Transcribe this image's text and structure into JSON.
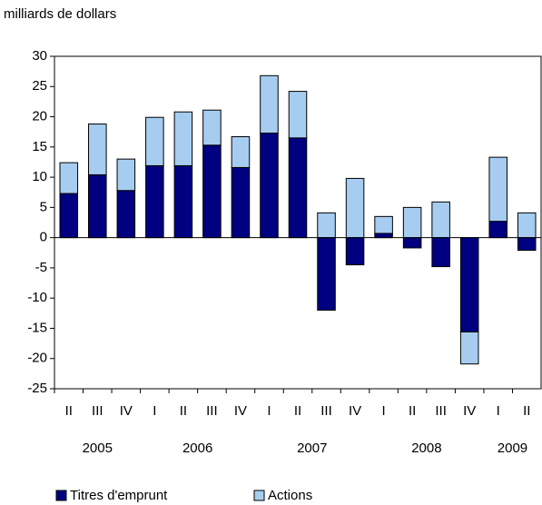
{
  "chart_data": {
    "type": "bar",
    "stacked": true,
    "y_label": "milliards de dollars",
    "groups": [
      {
        "year": "2005",
        "quarters": [
          "II",
          "III",
          "IV"
        ]
      },
      {
        "year": "2006",
        "quarters": [
          "I",
          "II",
          "III",
          "IV"
        ]
      },
      {
        "year": "2007",
        "quarters": [
          "I",
          "II",
          "III",
          "IV"
        ]
      },
      {
        "year": "2008",
        "quarters": [
          "I",
          "II",
          "III",
          "IV"
        ]
      },
      {
        "year": "2009",
        "quarters": [
          "I",
          "II"
        ]
      }
    ],
    "series": [
      {
        "name": "Titres d'emprunt",
        "color": "#000080",
        "values": [
          7.3,
          10.4,
          7.8,
          11.9,
          11.9,
          15.3,
          11.6,
          17.3,
          16.5,
          -12,
          -4.5,
          0.7,
          -1.7,
          -4.8,
          -15.6,
          2.7,
          -2.1
        ]
      },
      {
        "name": "Actions",
        "color": "#a6cdf0",
        "values": [
          5.1,
          8.4,
          5.2,
          8.0,
          8.9,
          5.8,
          5.1,
          9.5,
          7.7,
          4.1,
          9.8,
          2.8,
          5.0,
          5.9,
          -5.3,
          10.6,
          4.1
        ]
      }
    ],
    "ylim": [
      -25,
      30
    ],
    "yticks": [
      -25,
      -20,
      -15,
      -10,
      -5,
      0,
      5,
      10,
      15,
      20,
      25,
      30
    ],
    "grid": false
  }
}
